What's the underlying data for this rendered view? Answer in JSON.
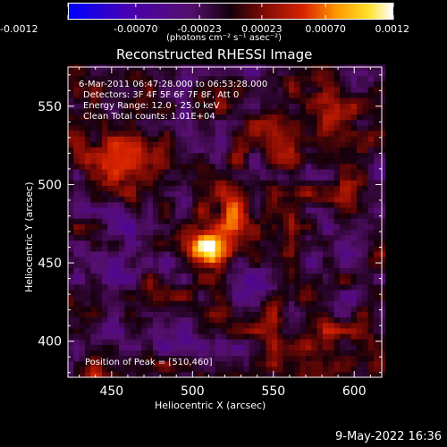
{
  "chart_data": {
    "type": "heatmap",
    "title": "Reconstructed RHESSI Image",
    "xlabel": "Heliocentric X (arcsec)",
    "ylabel": "Heliocentric Y (arcsec)",
    "xlim": [
      423,
      617
    ],
    "ylim": [
      377,
      575
    ],
    "x_ticks": [
      450,
      500,
      550,
      600
    ],
    "y_ticks": [
      400,
      450,
      500,
      550
    ],
    "colorbar": {
      "ticks": [
        "-0.0012",
        "-0.00070",
        "-0.00023",
        "0.00023",
        "0.00070",
        "0.0012"
      ],
      "tick_values": [
        -0.0012,
        -0.0007,
        -0.00023,
        0.00023,
        0.0007,
        0.0012
      ],
      "units_label": "(photons cm⁻² s⁻¹ asec⁻²)",
      "range": [
        -0.0012,
        0.0012
      ]
    },
    "annotations": [
      "6-Mar-2011 06:47:28.000 to 06:53:28.000",
      "Detectors: 3F 4F 5F 6F 7F 8F, Att 0",
      "Energy Range: 12.0 - 25.0 keV",
      "Clean      Total counts: 1.01E+04"
    ],
    "peak_label": "Position of Peak = [510,460]",
    "peak": {
      "x": 510,
      "y": 460,
      "value": 0.0012
    },
    "features": [
      {
        "x": 510,
        "y": 460,
        "sx": 9,
        "sy": 8,
        "amp": 1.0
      },
      {
        "x": 523,
        "y": 482,
        "sx": 7,
        "sy": 14,
        "amp": 0.55
      },
      {
        "x": 463,
        "y": 512,
        "sx": 18,
        "sy": 12,
        "amp": 0.32
      },
      {
        "x": 455,
        "y": 520,
        "sx": 10,
        "sy": 8,
        "amp": 0.2
      },
      {
        "x": 560,
        "y": 525,
        "sx": 18,
        "sy": 10,
        "amp": 0.22
      },
      {
        "x": 585,
        "y": 555,
        "sx": 15,
        "sy": 10,
        "amp": 0.2
      },
      {
        "x": 595,
        "y": 495,
        "sx": 10,
        "sy": 8,
        "amp": 0.15
      },
      {
        "x": 570,
        "y": 410,
        "sx": 22,
        "sy": 10,
        "amp": 0.18
      },
      {
        "x": 440,
        "y": 380,
        "sx": 12,
        "sy": 8,
        "amp": 0.22
      },
      {
        "x": 605,
        "y": 390,
        "sx": 10,
        "sy": 8,
        "amp": 0.15
      },
      {
        "x": 480,
        "y": 405,
        "sx": 30,
        "sy": 8,
        "amp": -0.22
      },
      {
        "x": 455,
        "y": 460,
        "sx": 20,
        "sy": 15,
        "amp": -0.25
      },
      {
        "x": 530,
        "y": 440,
        "sx": 15,
        "sy": 10,
        "amp": -0.2
      },
      {
        "x": 585,
        "y": 450,
        "sx": 15,
        "sy": 12,
        "amp": -0.15
      },
      {
        "x": 470,
        "y": 545,
        "sx": 20,
        "sy": 10,
        "amp": -0.12
      }
    ]
  },
  "footer_timestamp": "9-May-2022 16:36"
}
